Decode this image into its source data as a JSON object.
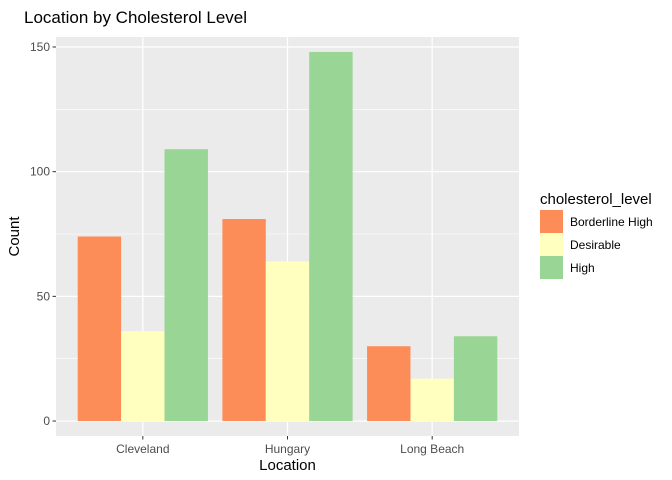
{
  "chart_data": {
    "type": "bar",
    "title": "Location by Cholesterol Level",
    "xlabel": "Location",
    "ylabel": "Count",
    "categories": [
      "Cleveland",
      "Hungary",
      "Long Beach"
    ],
    "series": [
      {
        "name": "Borderline High",
        "color": "#FC8D59",
        "values": [
          74,
          81,
          30
        ]
      },
      {
        "name": "Desirable",
        "color": "#FFFFBF",
        "values": [
          36,
          64,
          17
        ]
      },
      {
        "name": "High",
        "color": "#99D594",
        "values": [
          109,
          148,
          34
        ]
      }
    ],
    "ylim": [
      -6,
      154
    ],
    "yticks": [
      0,
      50,
      100,
      150
    ],
    "ytick_labels": [
      "0",
      "50",
      "100",
      "150"
    ],
    "yminor": [
      25,
      75,
      125
    ],
    "legend": {
      "title": "cholesterol_level",
      "position": "right"
    },
    "grid": true,
    "panel_background": "#EBEBEB"
  }
}
